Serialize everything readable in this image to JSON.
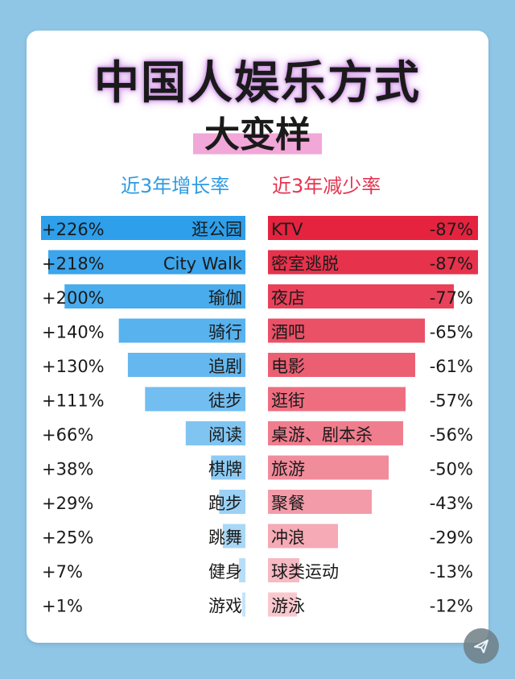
{
  "header": {
    "title": "中国人娱乐方式",
    "subtitle": "大变样"
  },
  "chart_data": {
    "type": "bar",
    "title": "中国人娱乐方式",
    "subtitle": "大变样",
    "increase": {
      "header": "近3年增长率",
      "color": "#2e9fea",
      "items": [
        {
          "category": "逛公园",
          "value": 226,
          "label": "+226%"
        },
        {
          "category": "City Walk",
          "value": 218,
          "label": "+218%"
        },
        {
          "category": "瑜伽",
          "value": 200,
          "label": "+200%"
        },
        {
          "category": "骑行",
          "value": 140,
          "label": "+140%"
        },
        {
          "category": "追剧",
          "value": 130,
          "label": "+130%"
        },
        {
          "category": "徒步",
          "value": 111,
          "label": "+111%"
        },
        {
          "category": "阅读",
          "value": 66,
          "label": "+66%"
        },
        {
          "category": "棋牌",
          "value": 38,
          "label": "+38%"
        },
        {
          "category": "跑步",
          "value": 29,
          "label": "+29%"
        },
        {
          "category": "跳舞",
          "value": 25,
          "label": "+25%"
        },
        {
          "category": "健身",
          "value": 7,
          "label": "+7%"
        },
        {
          "category": "游戏",
          "value": 1,
          "label": "+1%"
        }
      ]
    },
    "decrease": {
      "header": "近3年减少率",
      "color": "#e5233f",
      "items": [
        {
          "category": "KTV",
          "value": -87,
          "label": "-87%"
        },
        {
          "category": "密室逃脱",
          "value": -87,
          "label": "-87%"
        },
        {
          "category": "夜店",
          "value": -77,
          "label": "-77%"
        },
        {
          "category": "酒吧",
          "value": -65,
          "label": "-65%"
        },
        {
          "category": "电影",
          "value": -61,
          "label": "-61%"
        },
        {
          "category": "逛街",
          "value": -57,
          "label": "-57%"
        },
        {
          "category": "桌游、剧本杀",
          "value": -56,
          "label": "-56%"
        },
        {
          "category": "旅游",
          "value": -50,
          "label": "-50%"
        },
        {
          "category": "聚餐",
          "value": -43,
          "label": "-43%"
        },
        {
          "category": "冲浪",
          "value": -29,
          "label": "-29%"
        },
        {
          "category": "球类运动",
          "value": -13,
          "label": "-13%"
        },
        {
          "category": "游泳",
          "value": -12,
          "label": "-12%"
        }
      ]
    }
  },
  "icons": {
    "share": "share-icon"
  }
}
